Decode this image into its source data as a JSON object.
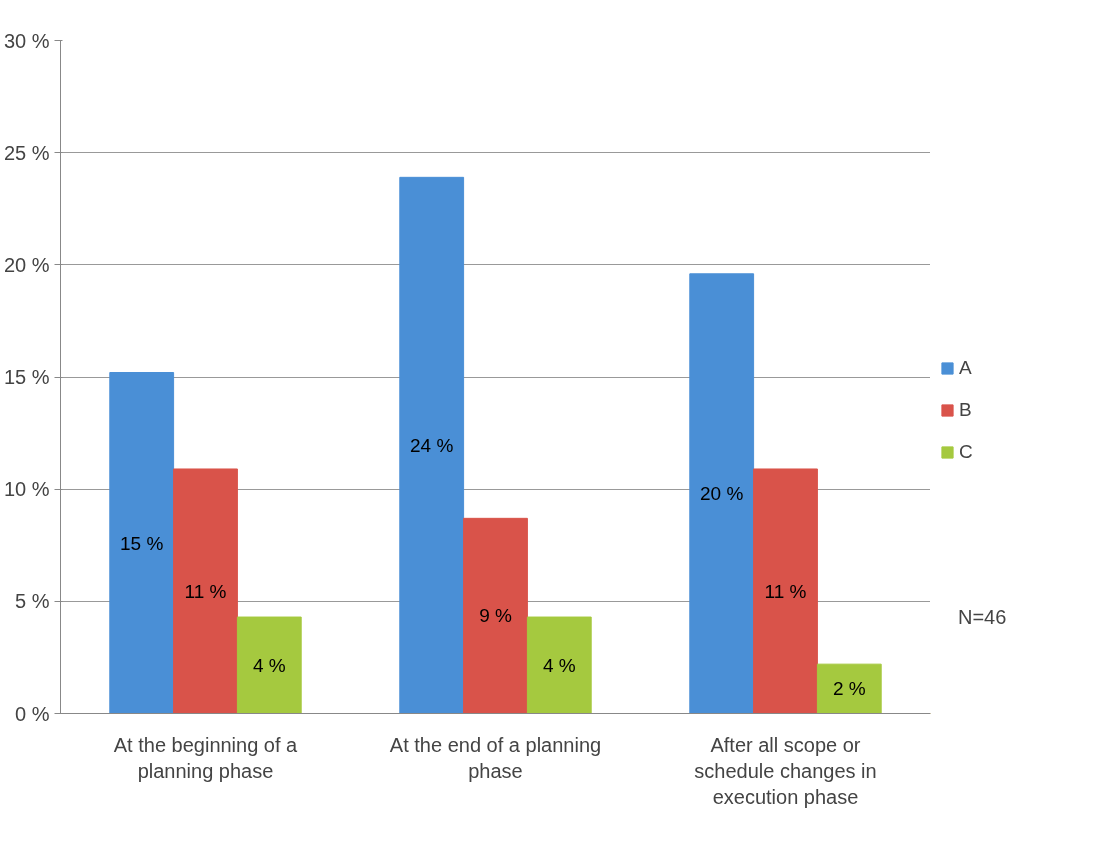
{
  "chart_data": {
    "type": "bar",
    "categories": [
      "At the beginning of a planning phase",
      "At the end of a planning phase",
      "After all scope or schedule changes in execution phase"
    ],
    "series": [
      {
        "name": "A",
        "color": "#4a8fd6",
        "values": [
          15.2,
          23.9,
          19.6
        ],
        "value_labels": [
          "15 %",
          "24 %",
          "20 %"
        ]
      },
      {
        "name": "B",
        "color": "#d9534a",
        "values": [
          10.9,
          8.7,
          10.9
        ],
        "value_labels": [
          "11 %",
          "9 %",
          "11 %"
        ]
      },
      {
        "name": "C",
        "color": "#a5c93f",
        "values": [
          4.3,
          4.3,
          2.2
        ],
        "value_labels": [
          "4 %",
          "4 %",
          "2 %"
        ]
      }
    ],
    "ylim": [
      0,
      30
    ],
    "yticks": [
      {
        "value": 0,
        "label": "0 %"
      },
      {
        "value": 5,
        "label": "5 %"
      },
      {
        "value": 10,
        "label": "10 %"
      },
      {
        "value": 15,
        "label": "15 %"
      },
      {
        "value": 20,
        "label": "20 %"
      },
      {
        "value": 25,
        "label": "25 %"
      },
      {
        "value": 30,
        "label": "30 %"
      }
    ],
    "grid": "y",
    "legend": "right",
    "annotations": [
      "N=46"
    ]
  }
}
